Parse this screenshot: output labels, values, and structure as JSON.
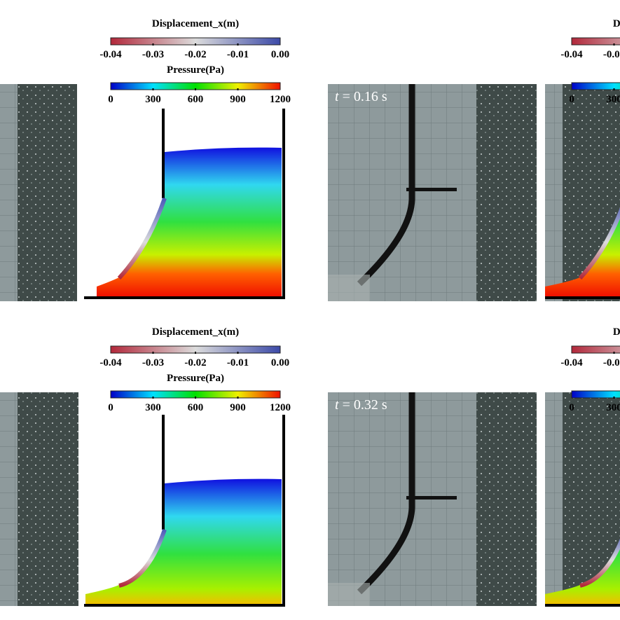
{
  "colorbars": {
    "displacement": {
      "title": "Displacement_x(m)",
      "ticks": [
        "-0.04",
        "-0.03",
        "-0.02",
        "-0.01",
        "0.00"
      ],
      "colors": [
        "#b2283a",
        "#dcdcdc",
        "#3c4aa8"
      ]
    },
    "pressure": {
      "title": "Pressure(Pa)",
      "ticks": [
        "0",
        "300",
        "600",
        "900",
        "1200"
      ],
      "colors": [
        "#0000c8",
        "#00e0ff",
        "#00e000",
        "#f0f000",
        "#f01000"
      ]
    }
  },
  "photos": [
    {
      "time_label": "t = 0.16 s",
      "t": "t",
      "rest": " = 0.16 s"
    },
    {
      "time_label": "t = 0.32 s",
      "t": "t",
      "rest": " = 0.32 s"
    }
  ]
}
